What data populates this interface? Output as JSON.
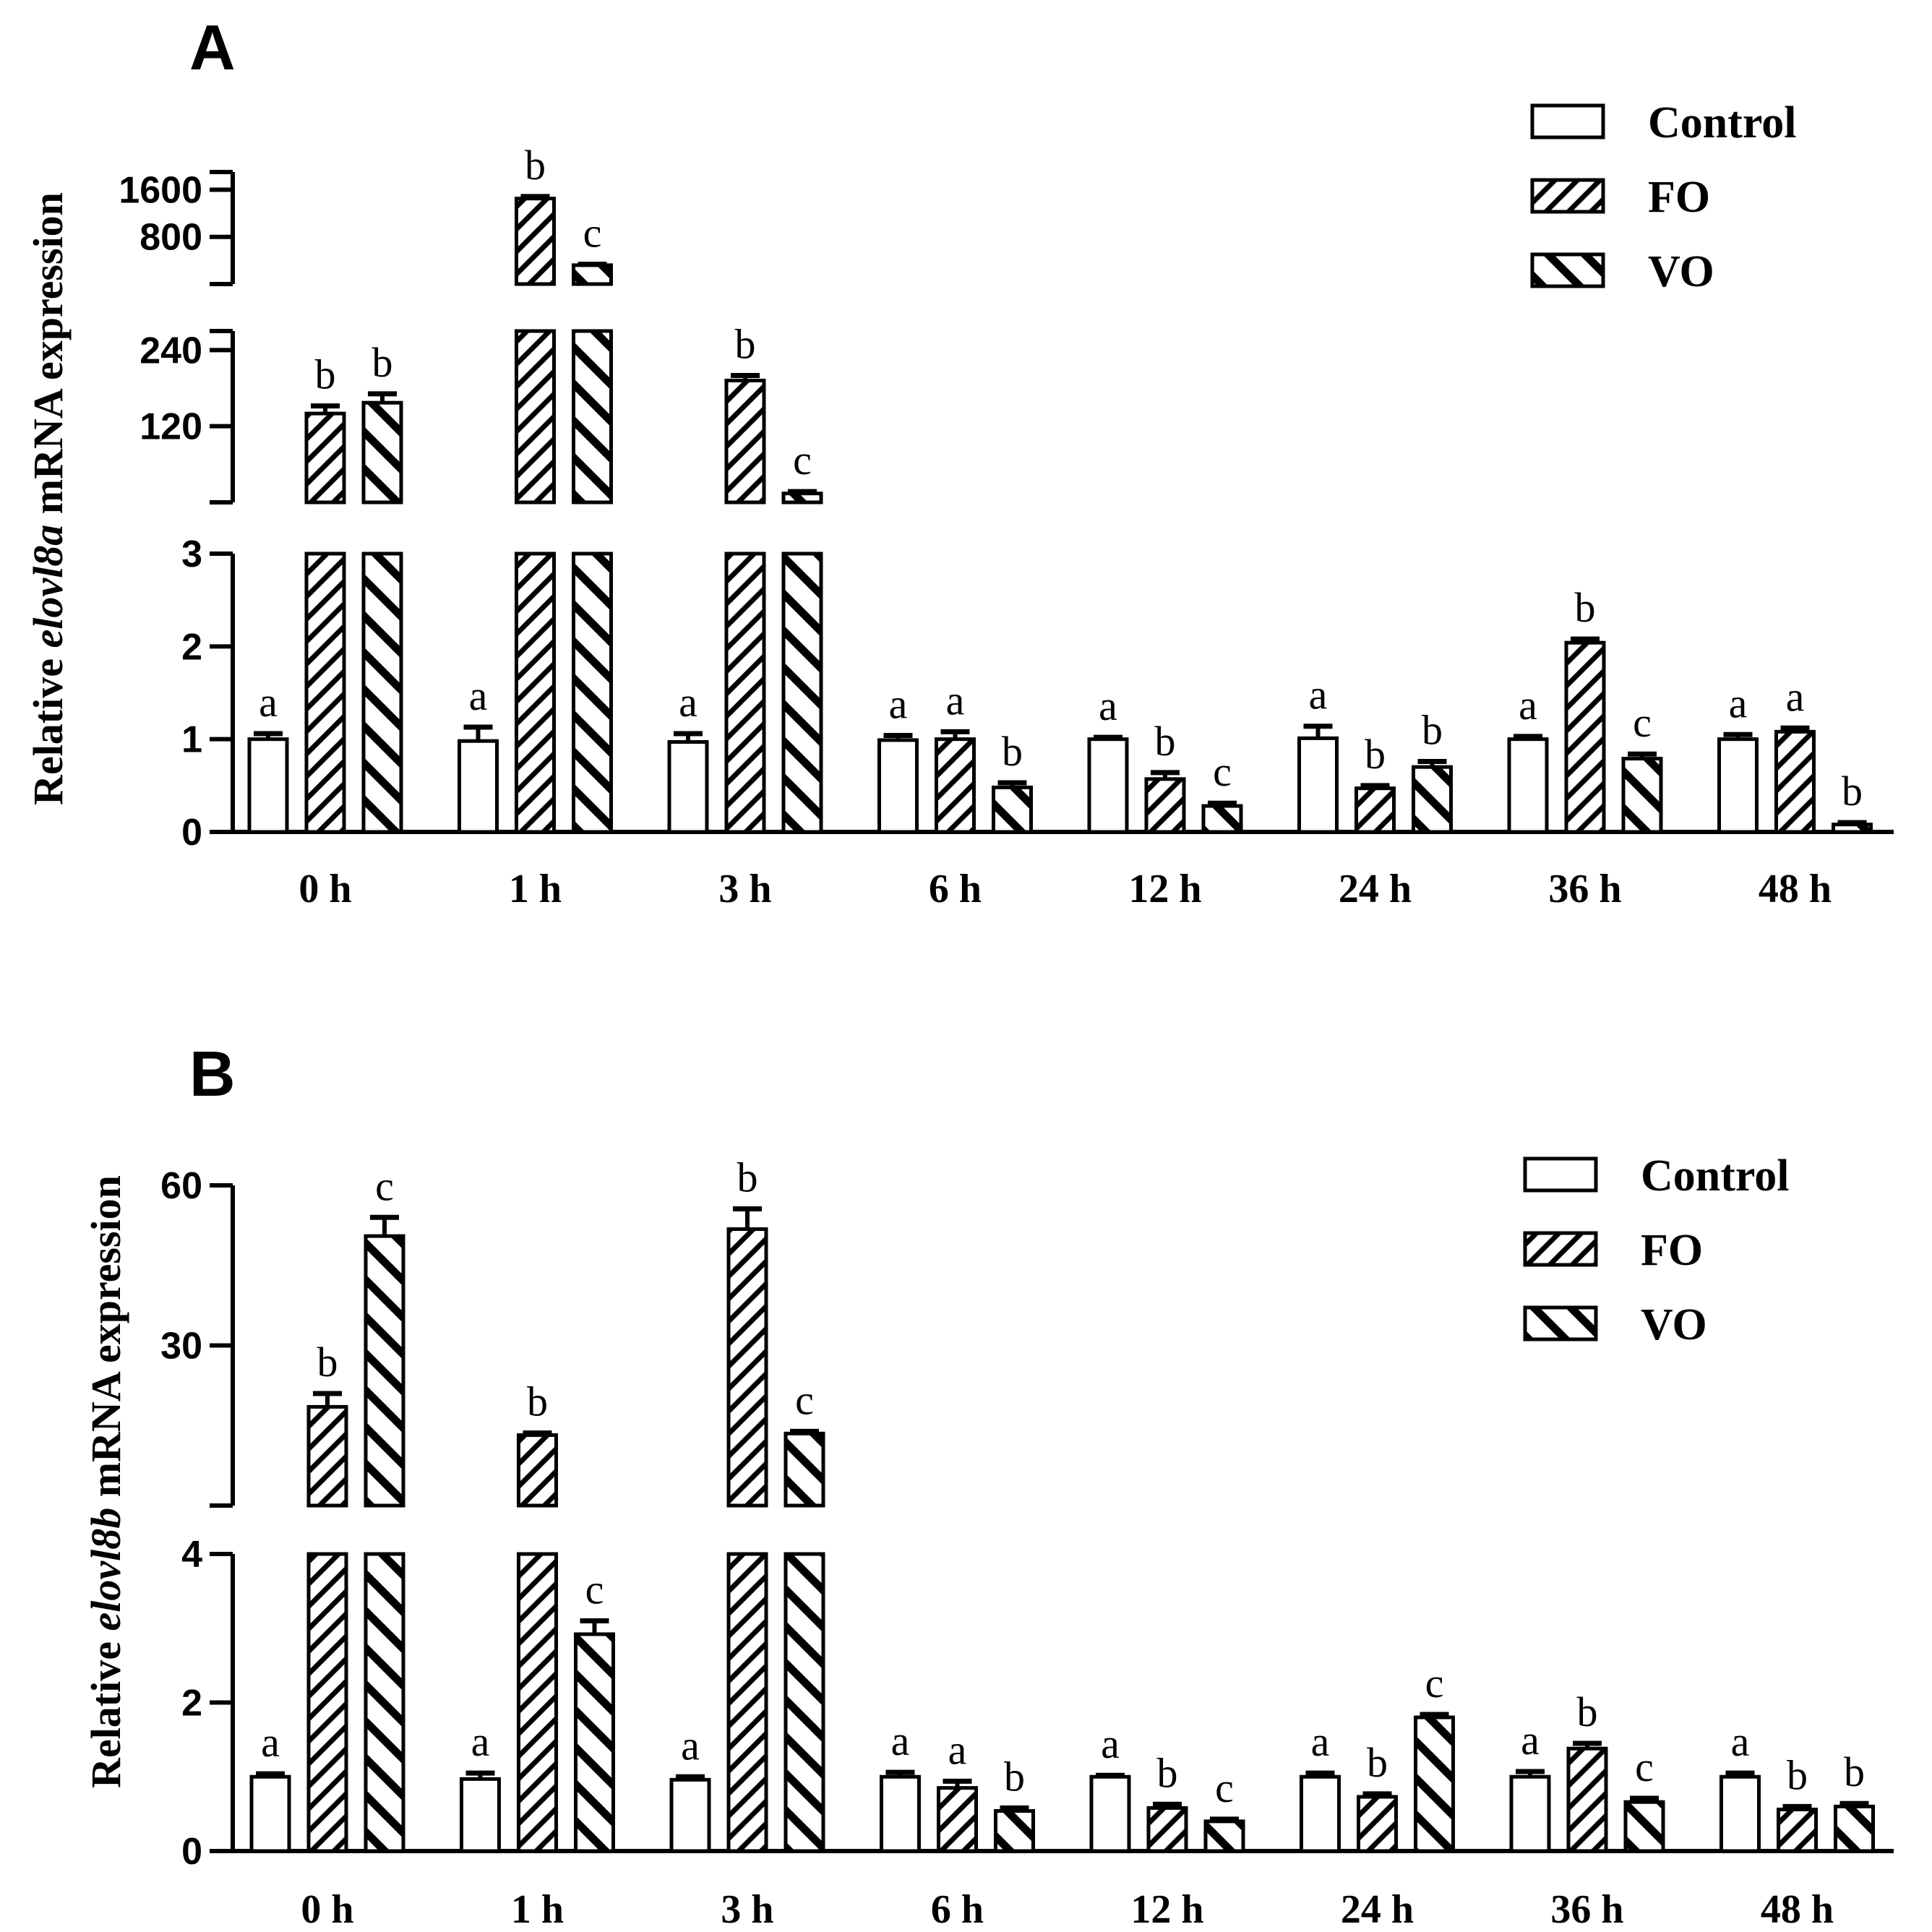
{
  "chart_data": [
    {
      "panel": "A",
      "type": "bar",
      "ylabel_prefix": "Relative ",
      "ylabel_gene": "elovl8a",
      "ylabel_suffix": " mRNA expression",
      "categories": [
        "0 h",
        "1 h",
        "3 h",
        "6 h",
        "12 h",
        "24 h",
        "36 h",
        "48 h"
      ],
      "broken_axis": [
        {
          "range": [
            0,
            3
          ],
          "ticks": [
            "0",
            "1",
            "2",
            "3"
          ]
        },
        {
          "range": [
            0,
            270
          ],
          "ticks": [
            "120",
            "240"
          ]
        },
        {
          "range": [
            0,
            1900
          ],
          "ticks": [
            "800",
            "1600"
          ]
        }
      ],
      "series": [
        {
          "name": "Control",
          "pattern": "none",
          "values": [
            1.0,
            0.98,
            0.97,
            0.99,
            1.0,
            1.01,
            1.0,
            1.0
          ],
          "errors": [
            0.06,
            0.15,
            0.09,
            0.05,
            0.02,
            0.13,
            0.03,
            0.05
          ],
          "letters": [
            "a",
            "a",
            "a",
            "a",
            "a",
            "a",
            "a",
            "a"
          ]
        },
        {
          "name": "FO",
          "pattern": "forward-diagonal",
          "values": [
            140,
            1450,
            192,
            1.0,
            0.57,
            0.47,
            2.04,
            1.08
          ],
          "errors": [
            12,
            35,
            8,
            0.08,
            0.07,
            0.03,
            0.04,
            0.04
          ],
          "letters": [
            "b",
            "b",
            "b",
            "a",
            "b",
            "b",
            "b",
            "a"
          ]
        },
        {
          "name": "VO",
          "pattern": "back-diagonal",
          "values": [
            157,
            320,
            14,
            0.48,
            0.28,
            0.7,
            0.79,
            0.08
          ],
          "errors": [
            14,
            15,
            3,
            0.05,
            0.03,
            0.06,
            0.05,
            0.02
          ],
          "letters": [
            "b",
            "c",
            "c",
            "b",
            "c",
            "b",
            "c",
            "b"
          ]
        }
      ]
    },
    {
      "panel": "B",
      "type": "bar",
      "ylabel_prefix": "Relative ",
      "ylabel_gene": "elovl8b",
      "ylabel_suffix": " mRNA expression",
      "categories": [
        "0 h",
        "1 h",
        "3 h",
        "6 h",
        "12 h",
        "24 h",
        "36 h",
        "48 h"
      ],
      "broken_axis": [
        {
          "range": [
            0,
            4
          ],
          "ticks": [
            "0",
            "2",
            "4"
          ]
        },
        {
          "range": [
            0,
            60
          ],
          "ticks": [
            "30",
            "60"
          ]
        }
      ],
      "series": [
        {
          "name": "Control",
          "pattern": "none",
          "values": [
            1.0,
            0.97,
            0.96,
            1.0,
            1.0,
            1.0,
            1.0,
            1.0
          ],
          "errors": [
            0.04,
            0.08,
            0.04,
            0.06,
            0.02,
            0.05,
            0.07,
            0.05
          ],
          "letters": [
            "a",
            "a",
            "a",
            "a",
            "a",
            "a",
            "a",
            "a"
          ]
        },
        {
          "name": "FO",
          "pattern": "forward-diagonal",
          "values": [
            18.5,
            13.2,
            51.8,
            0.85,
            0.58,
            0.73,
            1.38,
            0.56
          ],
          "errors": [
            2.5,
            0.4,
            3.8,
            0.09,
            0.05,
            0.04,
            0.07,
            0.04
          ],
          "letters": [
            "b",
            "b",
            "b",
            "a",
            "b",
            "b",
            "b",
            "b"
          ]
        },
        {
          "name": "VO",
          "pattern": "back-diagonal",
          "values": [
            50.5,
            2.92,
            13.5,
            0.54,
            0.4,
            1.8,
            0.66,
            0.6
          ],
          "errors": [
            3.5,
            0.18,
            0.4,
            0.04,
            0.03,
            0.04,
            0.05,
            0.04
          ],
          "letters": [
            "c",
            "c",
            "c",
            "b",
            "c",
            "c",
            "c",
            "b"
          ]
        }
      ]
    }
  ]
}
